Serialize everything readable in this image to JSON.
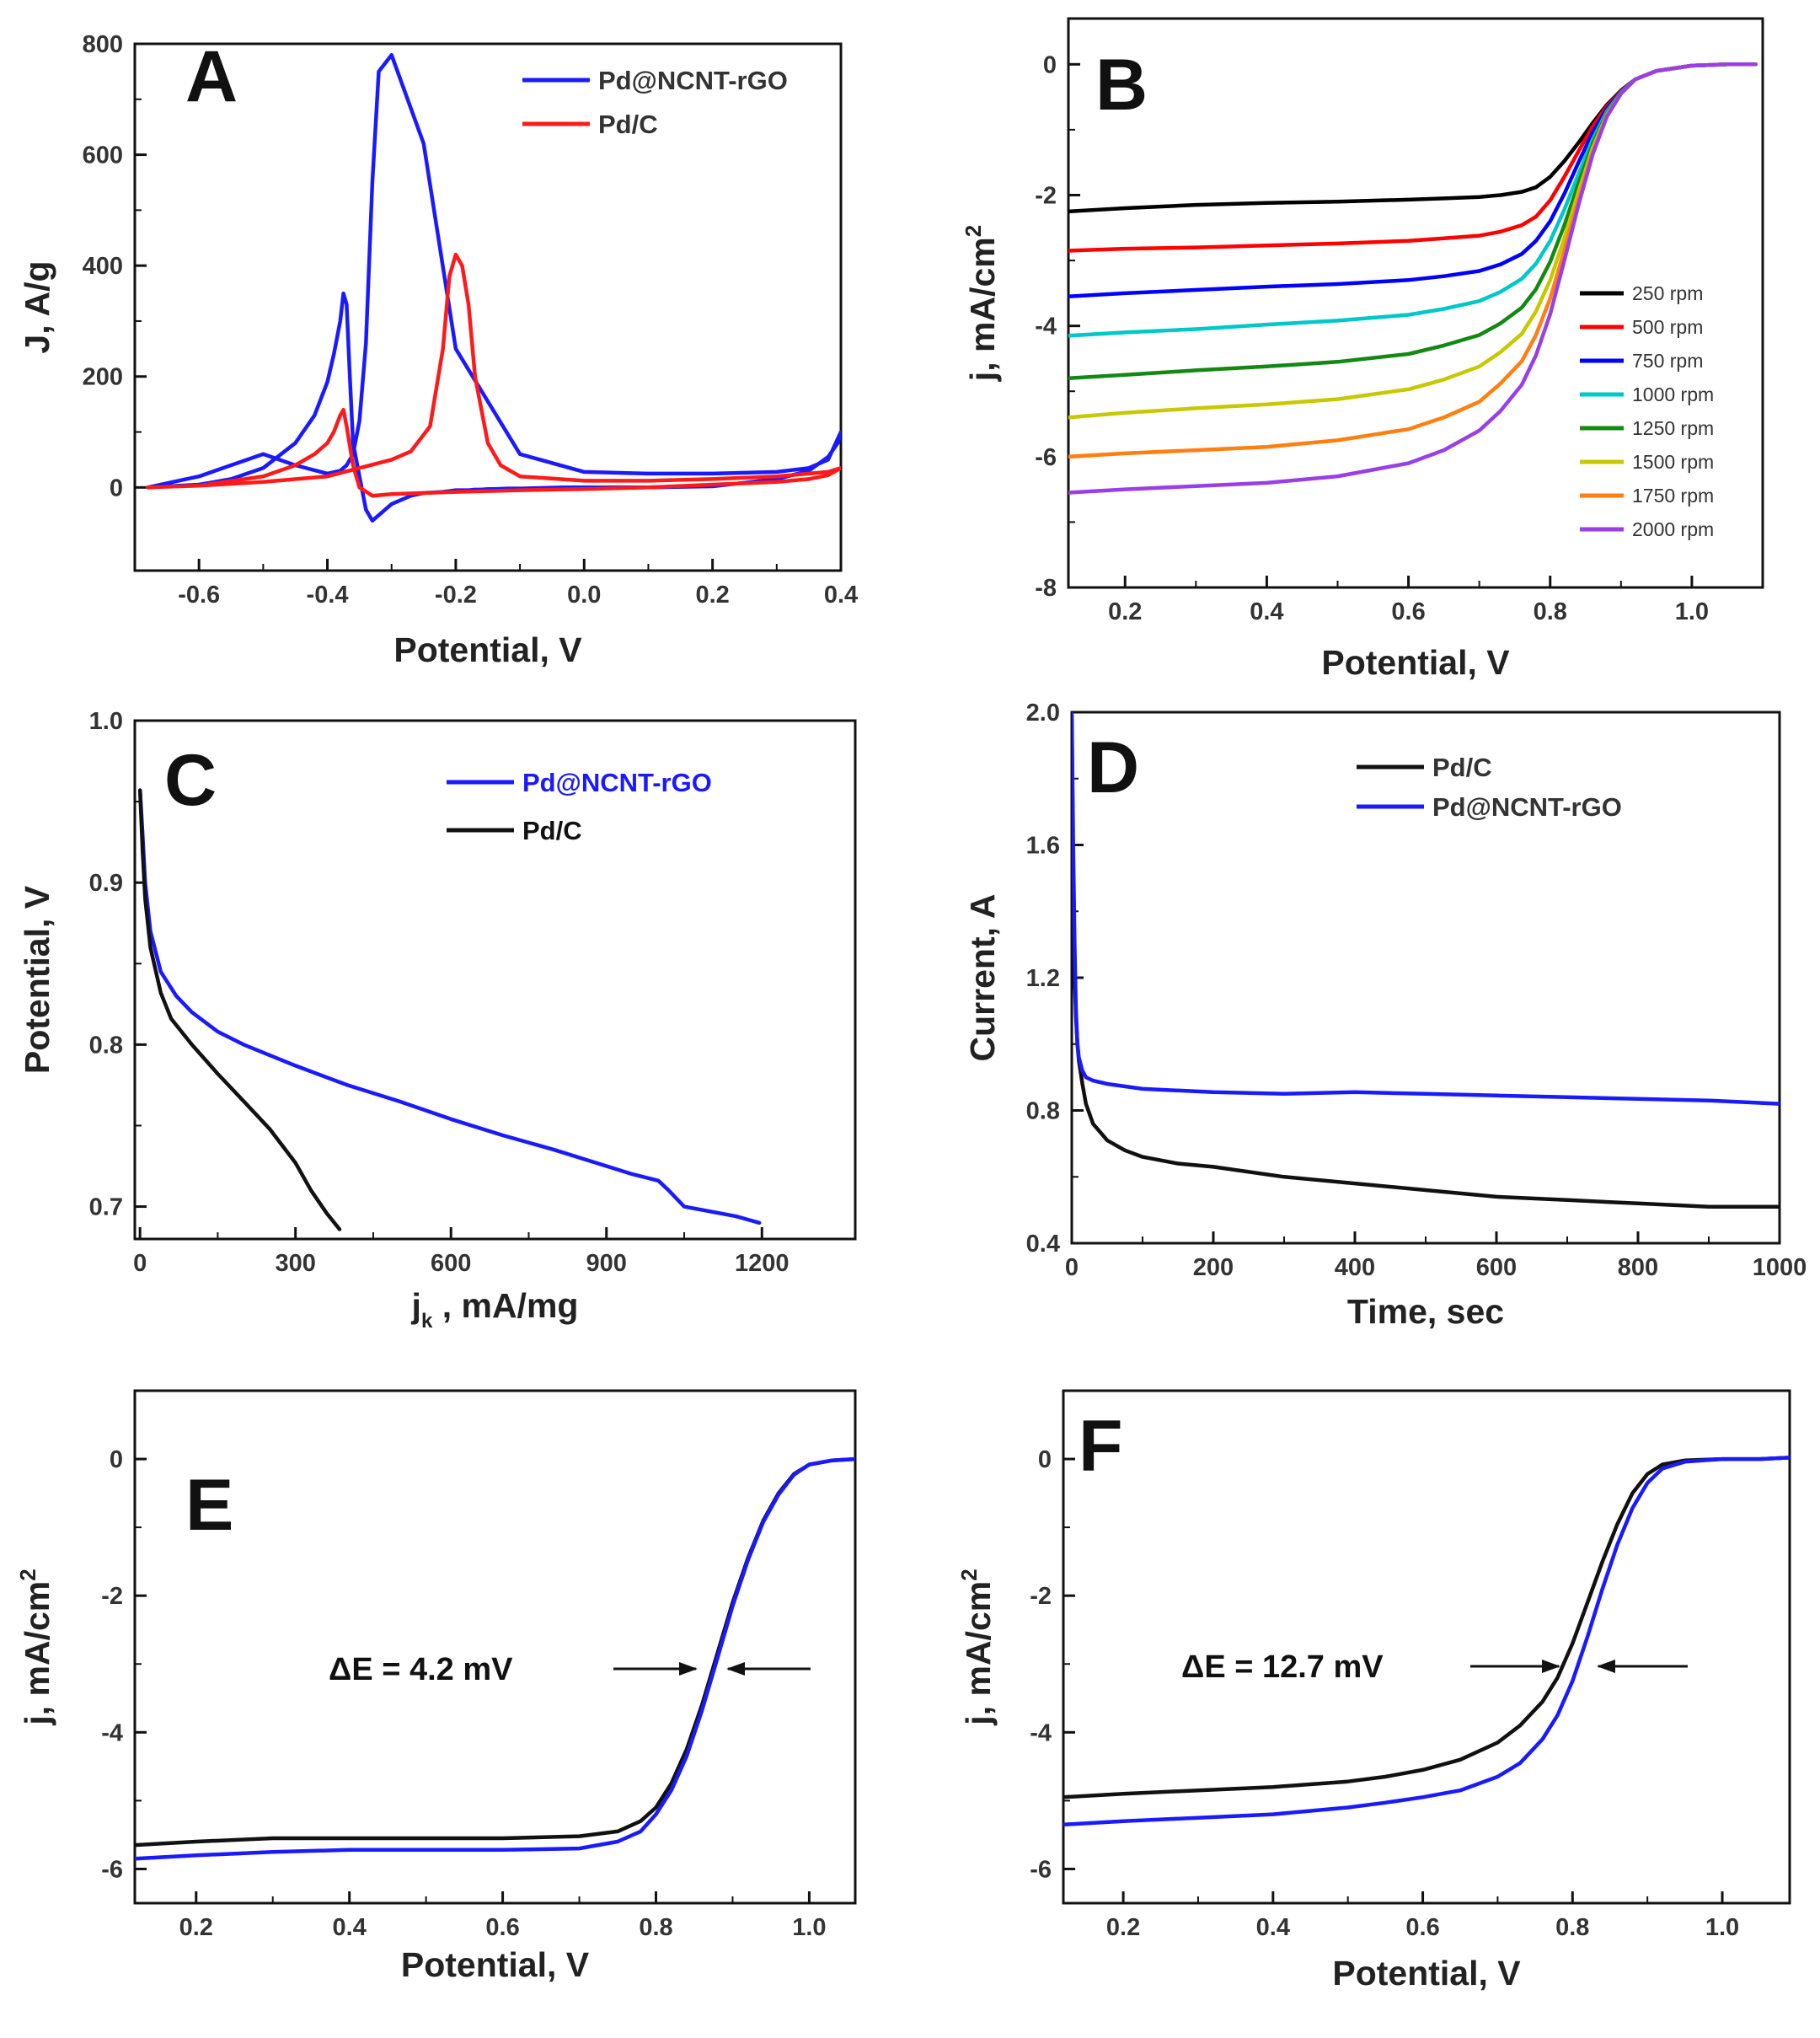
{
  "chart_data": [
    {
      "id": "A",
      "type": "line",
      "panel_label": "A",
      "xlabel": "Potential,  V",
      "ylabel": "J, A/g",
      "xlim": [
        -0.7,
        0.4
      ],
      "ylim": [
        -150,
        800
      ],
      "xticks": [
        -0.6,
        -0.4,
        -0.2,
        0.0,
        0.2,
        0.4
      ],
      "xtick_labels": [
        "-0.6",
        "-0.4",
        "-0.2",
        "0.0",
        "0.2",
        "0.4"
      ],
      "yticks": [
        0,
        200,
        400,
        600,
        800
      ],
      "ytick_labels": [
        "0",
        "200",
        "400",
        "600",
        "800"
      ],
      "legend": "top-right",
      "series": [
        {
          "name": "Pd@NCNT-rGO",
          "color": "#1a1aff",
          "x": [
            -0.68,
            -0.6,
            -0.55,
            -0.5,
            -0.45,
            -0.42,
            -0.4,
            -0.39,
            -0.38,
            -0.375,
            -0.37,
            -0.365,
            -0.36,
            -0.35,
            -0.34,
            -0.33,
            -0.3,
            -0.27,
            -0.25,
            -0.22,
            -0.2,
            -0.19,
            -0.18,
            -0.17,
            -0.16,
            -0.15,
            -0.14,
            -0.12,
            -0.1,
            -0.07,
            -0.03,
            0.0,
            0.1,
            0.2,
            0.3,
            0.35,
            0.38,
            0.395,
            0.4,
            0.38,
            0.35,
            0.3,
            0.2,
            0.1,
            0.0,
            -0.1,
            -0.2,
            -0.25,
            -0.3,
            -0.32,
            -0.33,
            -0.34,
            -0.35,
            -0.36,
            -0.37,
            -0.38,
            -0.4,
            -0.45,
            -0.5,
            -0.6,
            -0.68
          ],
          "y": [
            0,
            5,
            15,
            35,
            80,
            130,
            190,
            240,
            300,
            350,
            330,
            200,
            80,
            20,
            -40,
            -60,
            -30,
            -15,
            -10,
            -8,
            -5,
            -5,
            -5,
            -4,
            -4,
            -3,
            -3,
            -2,
            -2,
            -1,
            0,
            0,
            0,
            2,
            15,
            30,
            55,
            80,
            100,
            50,
            35,
            28,
            25,
            25,
            28,
            60,
            250,
            620,
            780,
            750,
            550,
            260,
            120,
            60,
            40,
            30,
            25,
            40,
            60,
            20,
            0
          ]
        },
        {
          "name": "Pd/C",
          "color": "#ff1a1a",
          "x": [
            -0.68,
            -0.6,
            -0.5,
            -0.45,
            -0.42,
            -0.4,
            -0.39,
            -0.38,
            -0.375,
            -0.37,
            -0.36,
            -0.35,
            -0.33,
            -0.3,
            -0.2,
            -0.1,
            0.0,
            0.1,
            0.2,
            0.3,
            0.35,
            0.38,
            0.4,
            0.38,
            0.35,
            0.3,
            0.2,
            0.1,
            0.0,
            -0.1,
            -0.13,
            -0.15,
            -0.17,
            -0.18,
            -0.19,
            -0.2,
            -0.21,
            -0.22,
            -0.24,
            -0.27,
            -0.3,
            -0.35,
            -0.4,
            -0.5,
            -0.6,
            -0.68
          ],
          "y": [
            0,
            3,
            20,
            40,
            60,
            80,
            100,
            130,
            140,
            110,
            40,
            0,
            -15,
            -12,
            -8,
            -5,
            -3,
            0,
            5,
            10,
            15,
            22,
            35,
            28,
            25,
            20,
            15,
            12,
            12,
            20,
            40,
            80,
            200,
            330,
            400,
            420,
            380,
            250,
            110,
            65,
            50,
            35,
            20,
            10,
            3,
            0
          ]
        }
      ]
    },
    {
      "id": "B",
      "type": "line",
      "panel_label": "B",
      "xlabel": "Potential, V",
      "ylabel": "j, mA/cm",
      "ylabel_sup": "2",
      "xlim": [
        0.12,
        1.1
      ],
      "ylim": [
        -8,
        0.7
      ],
      "xticks": [
        0.2,
        0.4,
        0.6,
        0.8,
        1.0
      ],
      "xtick_labels": [
        "0.2",
        "0.4",
        "0.6",
        "0.8",
        "1.0"
      ],
      "yticks": [
        -8,
        -6,
        -4,
        -2,
        0
      ],
      "ytick_labels": [
        "-8",
        "-6",
        "-4",
        "-2",
        "0"
      ],
      "legend": "right",
      "x": [
        0.12,
        0.2,
        0.3,
        0.4,
        0.5,
        0.6,
        0.65,
        0.7,
        0.73,
        0.76,
        0.78,
        0.8,
        0.82,
        0.84,
        0.86,
        0.88,
        0.9,
        0.92,
        0.95,
        1.0,
        1.05,
        1.09
      ],
      "series": [
        {
          "name": "250 rpm",
          "color": "#000000",
          "y": [
            -2.25,
            -2.2,
            -2.15,
            -2.12,
            -2.1,
            -2.07,
            -2.05,
            -2.03,
            -2.0,
            -1.95,
            -1.88,
            -1.72,
            -1.48,
            -1.2,
            -0.9,
            -0.62,
            -0.4,
            -0.23,
            -0.1,
            -0.02,
            0.0,
            0.0
          ]
        },
        {
          "name": "500 rpm",
          "color": "#ff0000",
          "y": [
            -2.85,
            -2.82,
            -2.8,
            -2.77,
            -2.74,
            -2.7,
            -2.66,
            -2.62,
            -2.56,
            -2.46,
            -2.33,
            -2.08,
            -1.72,
            -1.33,
            -0.95,
            -0.64,
            -0.41,
            -0.23,
            -0.1,
            -0.02,
            0.0,
            0.0
          ]
        },
        {
          "name": "750 rpm",
          "color": "#0000ff",
          "y": [
            -3.55,
            -3.5,
            -3.45,
            -3.4,
            -3.36,
            -3.3,
            -3.24,
            -3.16,
            -3.06,
            -2.9,
            -2.7,
            -2.4,
            -1.98,
            -1.5,
            -1.04,
            -0.68,
            -0.42,
            -0.23,
            -0.1,
            -0.02,
            0.0,
            0.0
          ]
        },
        {
          "name": "1000 rpm",
          "color": "#00c8c8",
          "y": [
            -4.15,
            -4.1,
            -4.05,
            -3.98,
            -3.92,
            -3.83,
            -3.74,
            -3.62,
            -3.48,
            -3.28,
            -3.05,
            -2.7,
            -2.22,
            -1.68,
            -1.15,
            -0.72,
            -0.43,
            -0.23,
            -0.1,
            -0.02,
            0.0,
            0.0
          ]
        },
        {
          "name": "1250 rpm",
          "color": "#138813",
          "y": [
            -4.8,
            -4.75,
            -4.68,
            -4.62,
            -4.55,
            -4.43,
            -4.3,
            -4.14,
            -3.96,
            -3.72,
            -3.44,
            -3.02,
            -2.46,
            -1.82,
            -1.22,
            -0.75,
            -0.44,
            -0.23,
            -0.1,
            -0.02,
            0.0,
            0.0
          ]
        },
        {
          "name": "1500 rpm",
          "color": "#c8c800",
          "y": [
            -5.4,
            -5.33,
            -5.26,
            -5.2,
            -5.12,
            -4.97,
            -4.82,
            -4.62,
            -4.4,
            -4.12,
            -3.78,
            -3.3,
            -2.66,
            -1.95,
            -1.28,
            -0.77,
            -0.45,
            -0.23,
            -0.1,
            -0.02,
            0.0,
            0.0
          ]
        },
        {
          "name": "1750 rpm",
          "color": "#ff7f10",
          "y": [
            -6.0,
            -5.95,
            -5.9,
            -5.85,
            -5.75,
            -5.58,
            -5.4,
            -5.16,
            -4.88,
            -4.54,
            -4.14,
            -3.58,
            -2.84,
            -2.06,
            -1.34,
            -0.79,
            -0.45,
            -0.23,
            -0.1,
            -0.02,
            0.0,
            0.0
          ]
        },
        {
          "name": "2000 rpm",
          "color": "#9a3fe6",
          "y": [
            -6.55,
            -6.5,
            -6.45,
            -6.4,
            -6.3,
            -6.1,
            -5.9,
            -5.6,
            -5.3,
            -4.9,
            -4.45,
            -3.82,
            -3.0,
            -2.15,
            -1.38,
            -0.8,
            -0.45,
            -0.23,
            -0.1,
            -0.02,
            0.0,
            0.0
          ]
        }
      ]
    },
    {
      "id": "C",
      "type": "line",
      "panel_label": "C",
      "xlabel": "j",
      "xlabel_sub": "k",
      "xlabel_rest": " , mA/mg",
      "ylabel": "Potential, V",
      "xlim": [
        -10,
        1380
      ],
      "ylim": [
        0.68,
        1.0
      ],
      "xticks": [
        0,
        300,
        600,
        900,
        1200
      ],
      "xtick_labels": [
        "0",
        "300",
        "600",
        "900",
        "1200"
      ],
      "yticks": [
        0.7,
        0.8,
        0.9,
        1.0
      ],
      "ytick_labels": [
        "0.7",
        "0.8",
        "0.9",
        "1.0"
      ],
      "legend": "top-right",
      "series": [
        {
          "name": "Pd@NCNT-rGO",
          "color": "#1a1aff",
          "x": [
            0,
            5,
            10,
            20,
            40,
            70,
            100,
            150,
            200,
            300,
            400,
            500,
            600,
            700,
            800,
            900,
            950,
            1000,
            1020,
            1050,
            1100,
            1150,
            1195
          ],
          "y": [
            0.957,
            0.93,
            0.9,
            0.87,
            0.845,
            0.83,
            0.82,
            0.808,
            0.8,
            0.787,
            0.775,
            0.765,
            0.754,
            0.744,
            0.735,
            0.725,
            0.72,
            0.716,
            0.71,
            0.7,
            0.697,
            0.694,
            0.69
          ]
        },
        {
          "name": "Pd/C",
          "color": "#111111",
          "x": [
            0,
            5,
            10,
            20,
            40,
            60,
            100,
            150,
            200,
            250,
            300,
            330,
            360,
            385
          ],
          "y": [
            0.957,
            0.92,
            0.89,
            0.86,
            0.832,
            0.816,
            0.8,
            0.782,
            0.765,
            0.748,
            0.727,
            0.71,
            0.696,
            0.686
          ]
        }
      ]
    },
    {
      "id": "D",
      "type": "line",
      "panel_label": "D",
      "xlabel": "Time, sec",
      "ylabel": "Current, A",
      "xlim": [
        0,
        1000
      ],
      "ylim": [
        0.4,
        2.0
      ],
      "xticks": [
        0,
        200,
        400,
        600,
        800,
        1000
      ],
      "xtick_labels": [
        "0",
        "200",
        "400",
        "600",
        "800",
        "1000"
      ],
      "yticks": [
        0.4,
        0.8,
        1.2,
        1.6,
        2.0
      ],
      "ytick_labels": [
        "0.4",
        "0.8",
        "1.2",
        "1.6",
        "2.0"
      ],
      "legend": "top-right",
      "series": [
        {
          "name": "Pd/C",
          "color": "#111111",
          "x": [
            0,
            2,
            4,
            6,
            8,
            10,
            15,
            20,
            30,
            50,
            75,
            100,
            150,
            200,
            300,
            400,
            500,
            600,
            700,
            800,
            900,
            1000
          ],
          "y": [
            1.98,
            1.5,
            1.2,
            1.08,
            1.0,
            0.95,
            0.88,
            0.82,
            0.76,
            0.71,
            0.68,
            0.66,
            0.64,
            0.63,
            0.6,
            0.58,
            0.56,
            0.54,
            0.53,
            0.52,
            0.51,
            0.51
          ]
        },
        {
          "name": "Pd@NCNT-rGO",
          "color": "#1a1aff",
          "x": [
            0,
            2,
            4,
            6,
            8,
            10,
            15,
            20,
            30,
            50,
            100,
            200,
            300,
            400,
            500,
            600,
            700,
            800,
            900,
            1000
          ],
          "y": [
            2.0,
            1.6,
            1.3,
            1.1,
            1.0,
            0.96,
            0.92,
            0.9,
            0.89,
            0.88,
            0.865,
            0.855,
            0.85,
            0.855,
            0.85,
            0.845,
            0.84,
            0.835,
            0.83,
            0.82
          ]
        }
      ]
    },
    {
      "id": "E",
      "type": "line",
      "panel_label": "E",
      "xlabel": "Potential, V",
      "ylabel": "j, mA/cm",
      "ylabel_sup": "2",
      "xlim": [
        0.12,
        1.06
      ],
      "ylim": [
        -6.5,
        1.0
      ],
      "xticks": [
        0.2,
        0.4,
        0.6,
        0.8,
        1.0
      ],
      "xtick_labels": [
        "0.2",
        "0.4",
        "0.6",
        "0.8",
        "1.0"
      ],
      "yticks": [
        -6,
        -4,
        -2,
        0
      ],
      "ytick_labels": [
        "-6",
        "-4",
        "-2",
        "0"
      ],
      "annotation": "ΔE = 4.2 mV",
      "series": [
        {
          "name": "Pd/C",
          "color": "#111111",
          "x": [
            0.12,
            0.2,
            0.3,
            0.4,
            0.5,
            0.6,
            0.7,
            0.75,
            0.78,
            0.8,
            0.82,
            0.84,
            0.86,
            0.88,
            0.9,
            0.92,
            0.94,
            0.96,
            0.98,
            1.0,
            1.03,
            1.06
          ],
          "y": [
            -5.65,
            -5.6,
            -5.55,
            -5.55,
            -5.55,
            -5.55,
            -5.52,
            -5.45,
            -5.3,
            -5.1,
            -4.75,
            -4.25,
            -3.6,
            -2.85,
            -2.1,
            -1.45,
            -0.9,
            -0.5,
            -0.22,
            -0.08,
            -0.02,
            0.0
          ]
        },
        {
          "name": "Pd@NCNT-rGO",
          "color": "#1a1aff",
          "x": [
            0.12,
            0.2,
            0.3,
            0.4,
            0.5,
            0.6,
            0.7,
            0.75,
            0.78,
            0.8,
            0.82,
            0.84,
            0.86,
            0.88,
            0.9,
            0.92,
            0.94,
            0.96,
            0.98,
            1.0,
            1.03,
            1.06
          ],
          "y": [
            -5.85,
            -5.8,
            -5.75,
            -5.72,
            -5.72,
            -5.72,
            -5.7,
            -5.6,
            -5.45,
            -5.2,
            -4.85,
            -4.35,
            -3.68,
            -2.92,
            -2.15,
            -1.48,
            -0.92,
            -0.52,
            -0.23,
            -0.08,
            -0.02,
            0.0
          ]
        }
      ]
    },
    {
      "id": "F",
      "type": "line",
      "panel_label": "F",
      "xlabel": "Potential, V",
      "ylabel": "j, mA/cm",
      "ylabel_sup": "2",
      "xlim": [
        0.12,
        1.09
      ],
      "ylim": [
        -6.5,
        1.0
      ],
      "xticks": [
        0.2,
        0.4,
        0.6,
        0.8,
        1.0
      ],
      "xtick_labels": [
        "0.2",
        "0.4",
        "0.6",
        "0.8",
        "1.0"
      ],
      "yticks": [
        -6,
        -4,
        -2,
        0
      ],
      "ytick_labels": [
        "-6",
        "-4",
        "-2",
        "0"
      ],
      "annotation": "ΔE = 12.7 mV",
      "series": [
        {
          "name": "Pd/C",
          "color": "#111111",
          "x": [
            0.12,
            0.2,
            0.3,
            0.4,
            0.5,
            0.55,
            0.6,
            0.65,
            0.7,
            0.73,
            0.76,
            0.78,
            0.8,
            0.82,
            0.84,
            0.86,
            0.88,
            0.9,
            0.92,
            0.95,
            1.0,
            1.05,
            1.09
          ],
          "y": [
            -4.95,
            -4.9,
            -4.85,
            -4.8,
            -4.72,
            -4.65,
            -4.55,
            -4.4,
            -4.15,
            -3.9,
            -3.55,
            -3.2,
            -2.7,
            -2.1,
            -1.5,
            -0.95,
            -0.5,
            -0.22,
            -0.08,
            -0.02,
            0.0,
            0.0,
            0.02
          ]
        },
        {
          "name": "Pd@NCNT-rGO",
          "color": "#1a1aff",
          "x": [
            0.12,
            0.2,
            0.3,
            0.4,
            0.5,
            0.55,
            0.6,
            0.65,
            0.7,
            0.73,
            0.76,
            0.78,
            0.8,
            0.82,
            0.84,
            0.86,
            0.88,
            0.9,
            0.92,
            0.95,
            1.0,
            1.05,
            1.09
          ],
          "y": [
            -5.35,
            -5.3,
            -5.25,
            -5.2,
            -5.1,
            -5.03,
            -4.95,
            -4.85,
            -4.65,
            -4.45,
            -4.1,
            -3.75,
            -3.25,
            -2.6,
            -1.9,
            -1.25,
            -0.72,
            -0.35,
            -0.14,
            -0.04,
            0.0,
            0.0,
            0.02
          ]
        }
      ]
    }
  ]
}
